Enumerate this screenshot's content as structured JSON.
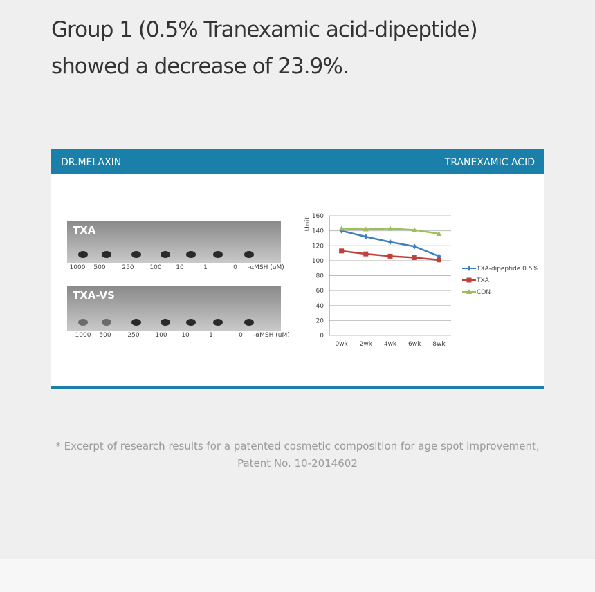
{
  "headline": [
    "Group 1 (0.5% Tranexamic acid-dipeptide)",
    "showed a decrease of 23.9%."
  ],
  "panel": {
    "brand": "DR.MELAXIN",
    "product": "TRANEXAMIC ACID",
    "photos": [
      {
        "label": "TXA",
        "doses": [
          "1000",
          "500",
          "250",
          "100",
          "10",
          "1",
          "0",
          "-αMSH (uM)"
        ]
      },
      {
        "label": "TXA-VS",
        "doses": [
          "1000",
          "500",
          "250",
          "100",
          "10",
          "1",
          "0",
          "-αMSH (uM)"
        ]
      }
    ]
  },
  "chart_data": {
    "type": "line",
    "ylabel": "Unit",
    "categories": [
      "0wk",
      "2wk",
      "4wk",
      "6wk",
      "8wk"
    ],
    "series": [
      {
        "name": "TXA-dipeptide 0.5%",
        "color": "#3f7fc1",
        "marker": "diamond",
        "values": [
          140,
          132,
          125,
          119,
          106
        ]
      },
      {
        "name": "TXA",
        "color": "#c0403a",
        "marker": "square",
        "values": [
          113,
          109,
          106,
          104,
          101
        ]
      },
      {
        "name": "CON",
        "color": "#9cbf5a",
        "marker": "triangle",
        "values": [
          143,
          142,
          143,
          141,
          136
        ]
      }
    ],
    "ylim": [
      0,
      160
    ],
    "yticks": [
      0,
      20,
      40,
      60,
      80,
      100,
      120,
      140,
      160
    ],
    "grid": true,
    "legend": "right"
  },
  "footnote": [
    "* Excerpt of research results for a patented cosmetic composition for age spot improvement,",
    "Patent No. 10-2014602"
  ]
}
